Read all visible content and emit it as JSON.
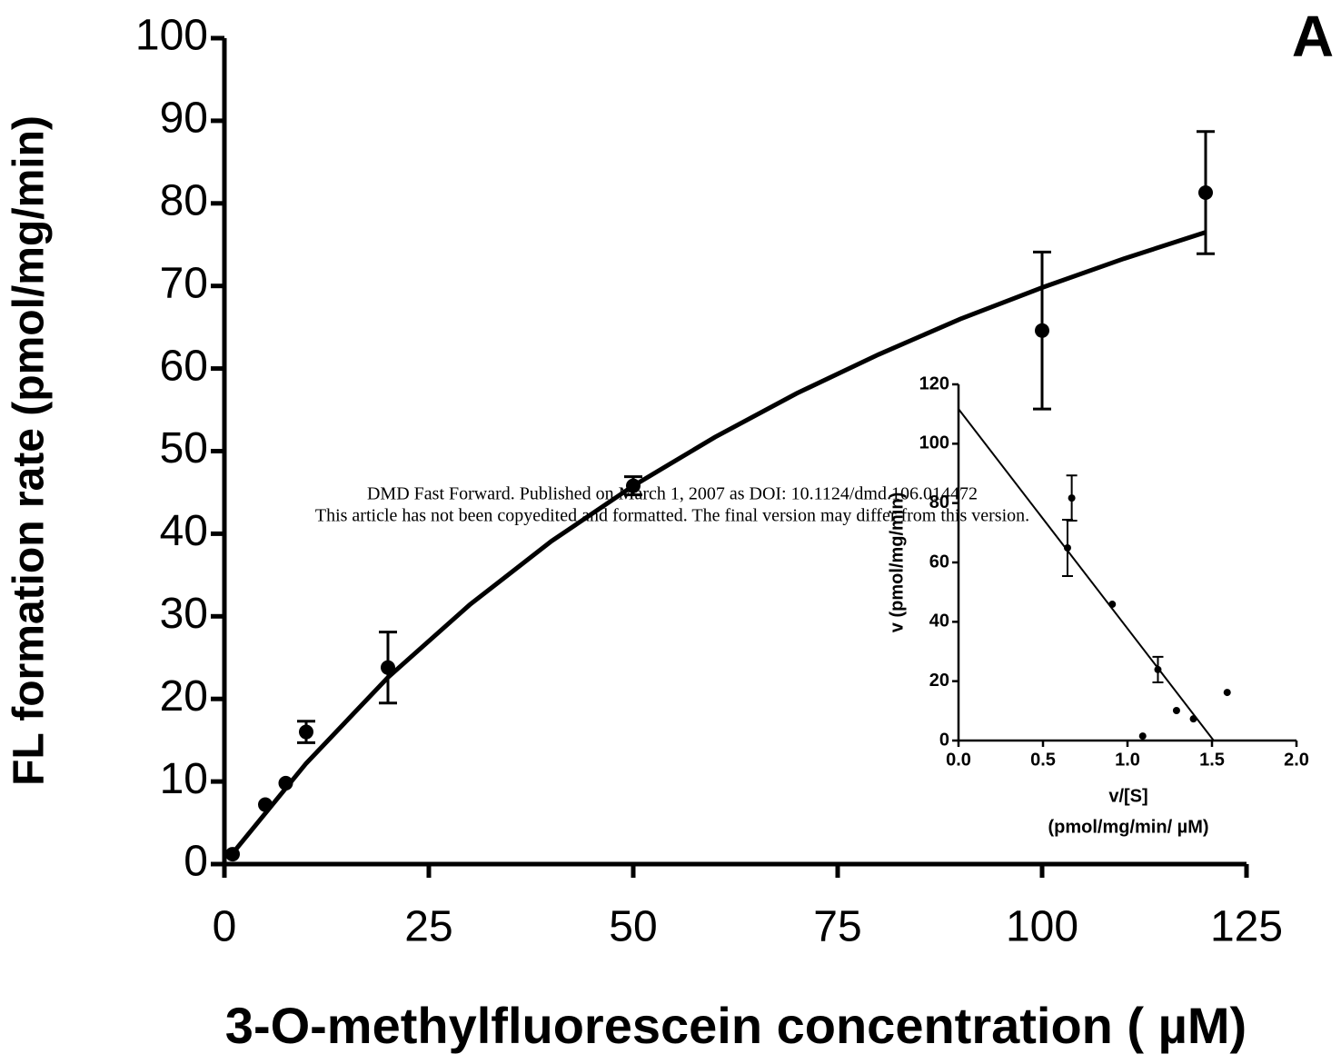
{
  "panel_label": "A",
  "watermark": [
    "DMD Fast Forward. Published on March 1, 2007 as DOI: 10.1124/dmd.106.014472",
    "This article has not been copyedited and formatted. The final version may differ from this version."
  ],
  "chart_data": [
    {
      "type": "scatter",
      "color": "#000000",
      "x_label": "3-O-methylfluorescein concentration ( µM)",
      "y_label": "FL formation rate (pmol/mg/min)",
      "xlim": [
        0,
        125
      ],
      "ylim": [
        0,
        100
      ],
      "xticks": [
        0,
        25,
        50,
        75,
        100,
        125
      ],
      "yticks": [
        0,
        10,
        20,
        30,
        40,
        50,
        60,
        70,
        80,
        90,
        100
      ],
      "x": [
        1,
        5,
        7.5,
        10,
        20,
        50,
        100,
        120
      ],
      "values": [
        1.2,
        7.2,
        9.8,
        16.0,
        23.8,
        45.8,
        64.6,
        81.3
      ],
      "errors": [
        null,
        null,
        null,
        1.3,
        4.3,
        1.1,
        9.5,
        7.4
      ],
      "fit_x": [
        1,
        10,
        20,
        30,
        40,
        50,
        60,
        70,
        80,
        90,
        100,
        110,
        120
      ],
      "fit_values": [
        1.3,
        12.2,
        22.6,
        31.4,
        39.1,
        45.8,
        51.7,
        57.0,
        61.7,
        66.0,
        69.8,
        73.3,
        76.5
      ]
    },
    {
      "type": "scatter",
      "color": "#000000",
      "x_label": [
        "v/[S]",
        "(pmol/mg/min/ µM)"
      ],
      "y_label": "v (pmol/mg/min)",
      "xlim": [
        0,
        2
      ],
      "ylim": [
        0,
        120
      ],
      "xticks": [
        {
          "value": 0,
          "label": "0.0"
        },
        0.5,
        {
          "value": 1,
          "label": "1.0"
        },
        1.5,
        {
          "value": 2,
          "label": "2.0"
        }
      ],
      "yticks": [
        0,
        20,
        40,
        60,
        80,
        100,
        120
      ],
      "x": [
        0.67,
        0.645,
        0.91,
        1.18,
        1.59,
        1.29,
        1.39,
        1.09
      ],
      "values": [
        81.7,
        64.9,
        45.9,
        23.9,
        16.2,
        10.1,
        7.3,
        1.5
      ],
      "errors": [
        7.6,
        9.5,
        null,
        4.3,
        null,
        null,
        null,
        null
      ],
      "fit_x": [
        0,
        1.51
      ],
      "fit_values": [
        111.7,
        0
      ]
    }
  ]
}
